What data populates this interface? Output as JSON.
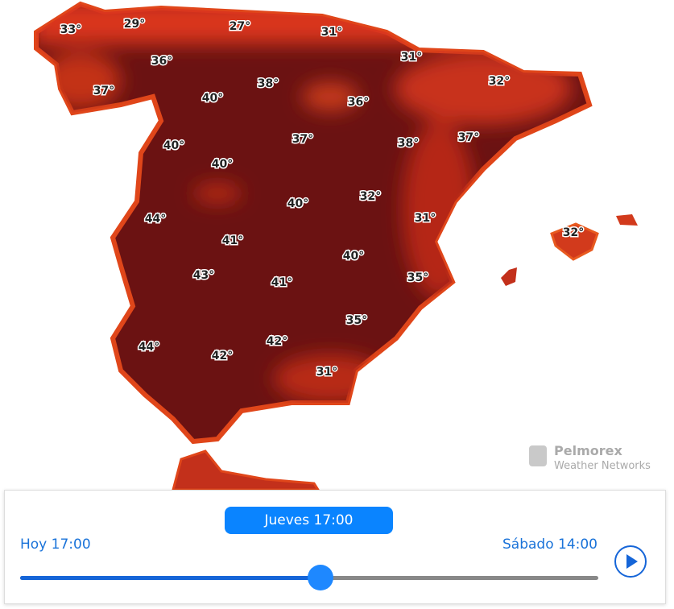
{
  "map": {
    "temperature_labels": [
      "33°",
      "29°",
      "27°",
      "31°",
      "36°",
      "31°",
      "37°",
      "38°",
      "32°",
      "40°",
      "36°",
      "37°",
      "38°",
      "37°",
      "40°",
      "40°",
      "32°",
      "40°",
      "31°",
      "44°",
      "41°",
      "32°",
      "40°",
      "43°",
      "41°",
      "35°",
      "35°",
      "44°",
      "42°",
      "42°",
      "31°"
    ]
  },
  "logo": {
    "name": "Pelmorex",
    "subtitle": "Weather Networks"
  },
  "timeline": {
    "current": "Jueves 17:00",
    "start": "Hoy 17:00",
    "end": "Sábado 14:00"
  }
}
